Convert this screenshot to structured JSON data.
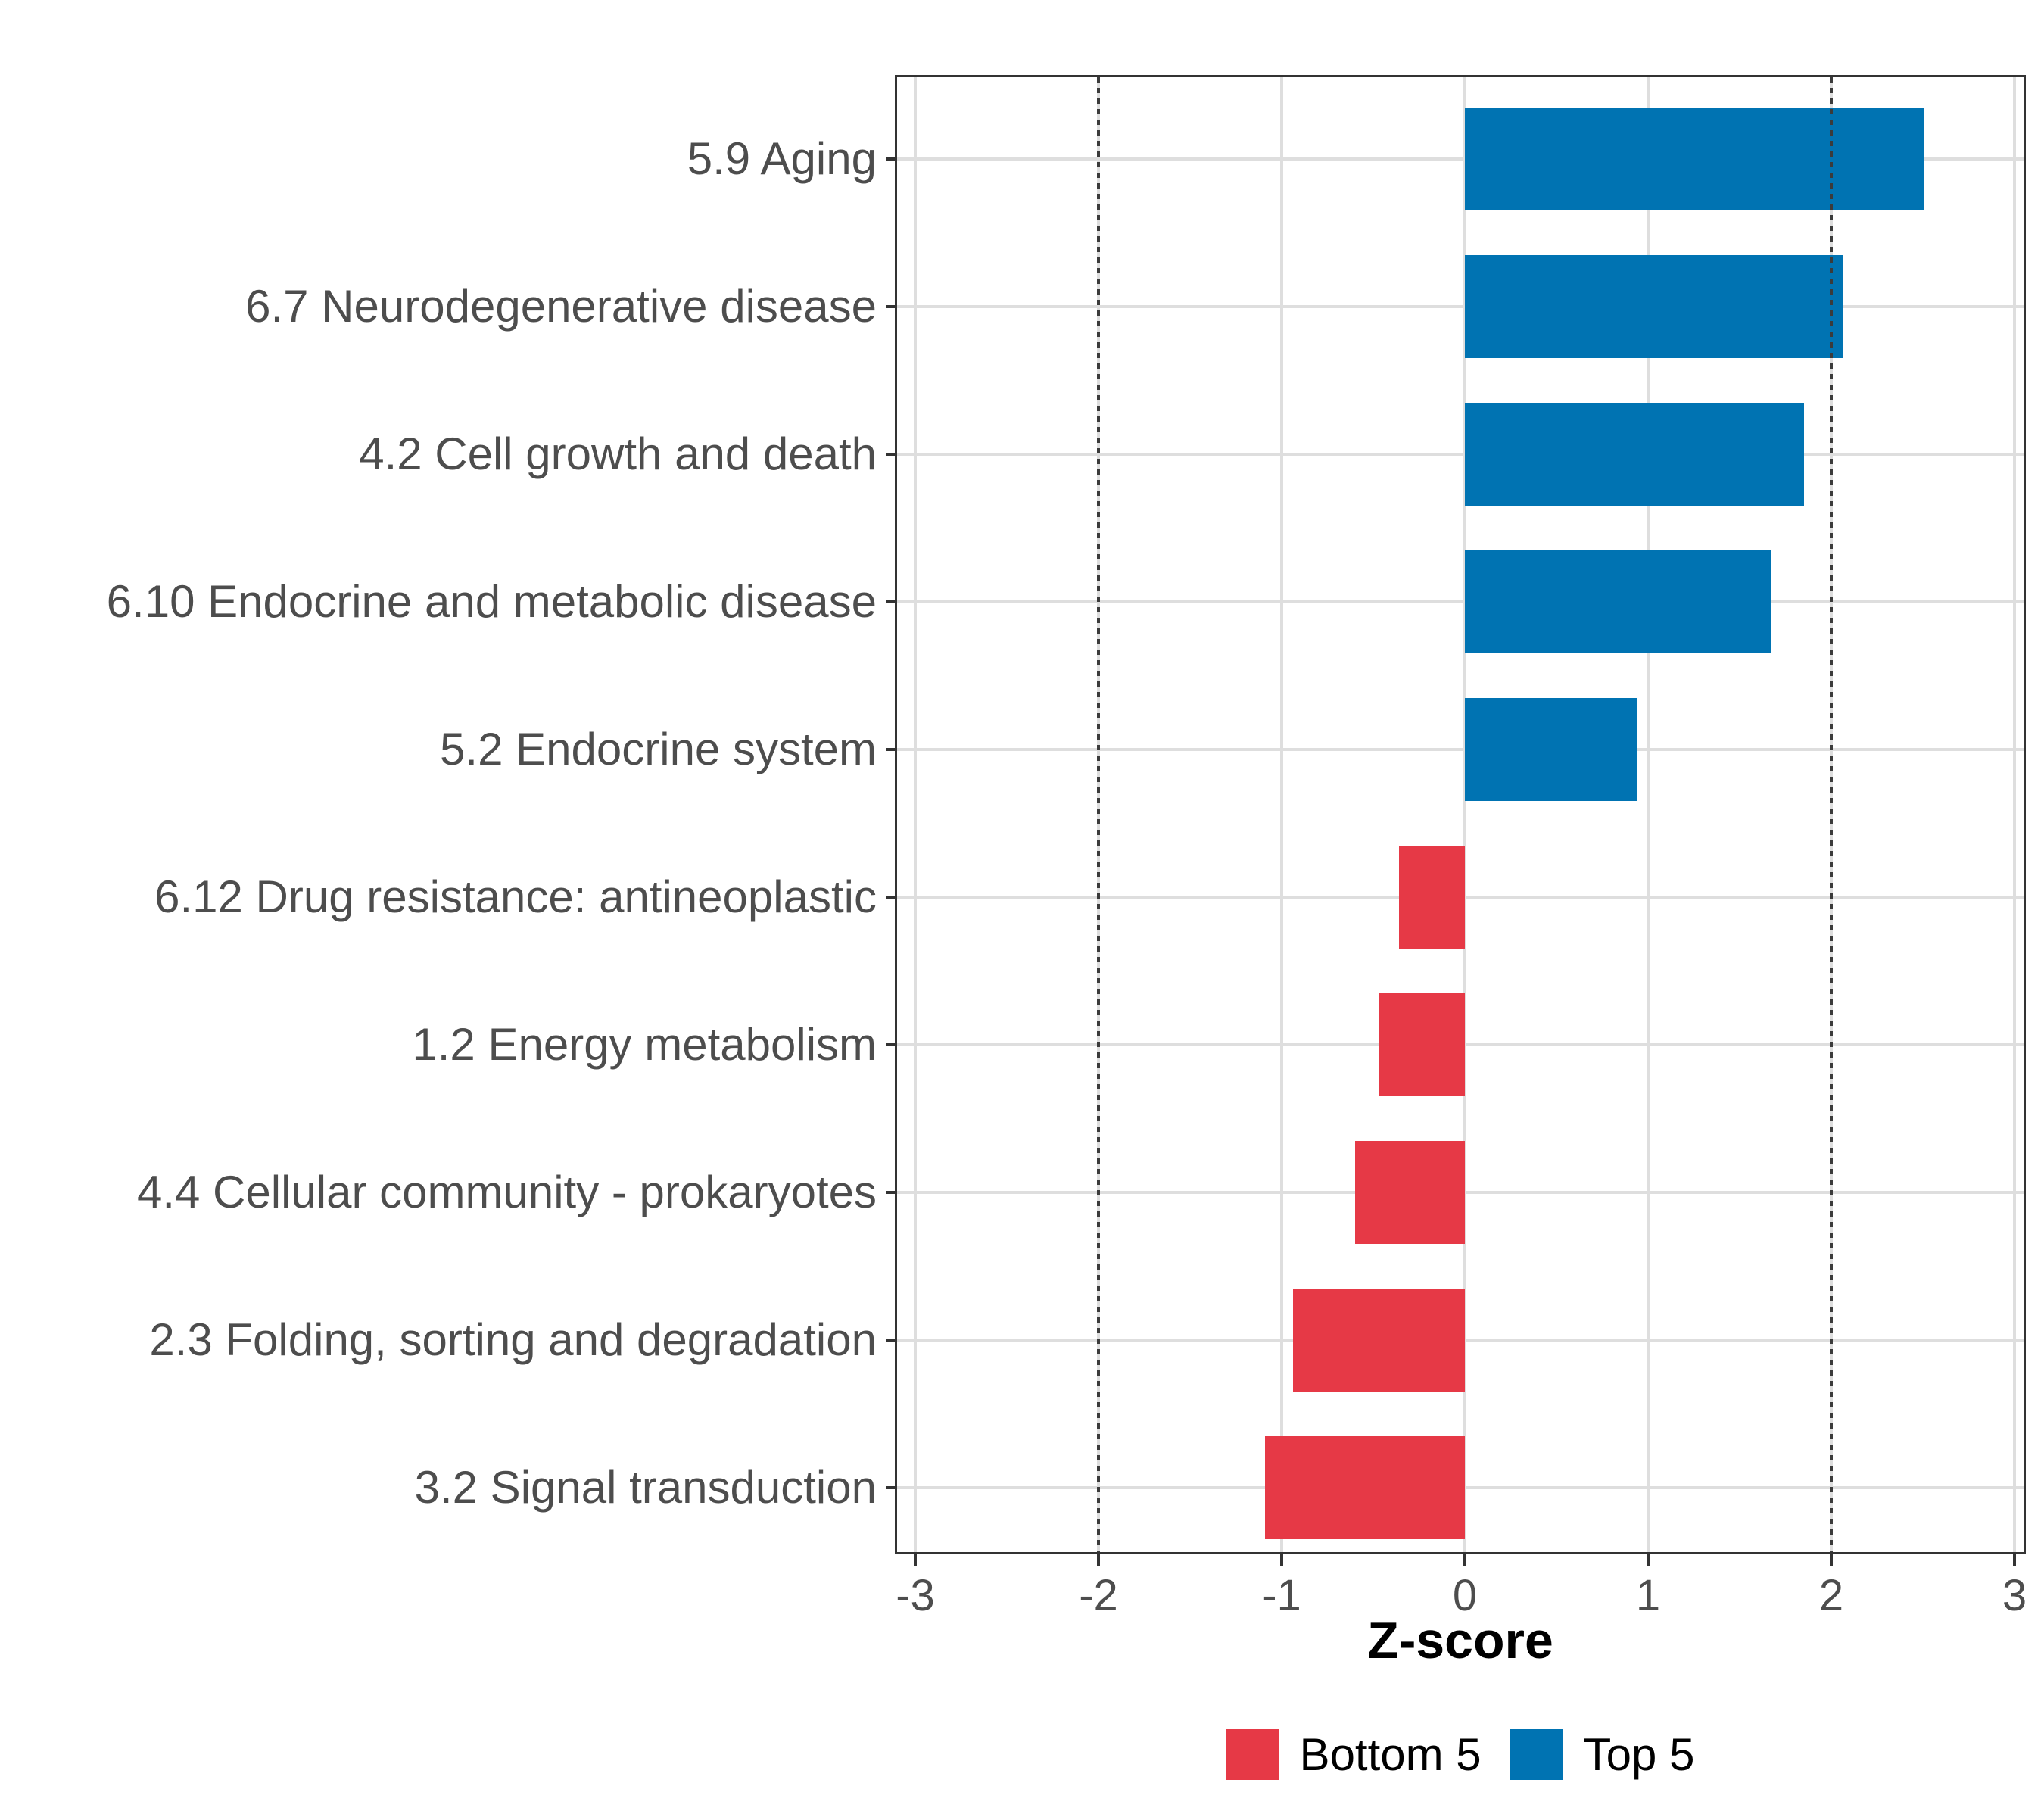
{
  "chart_data": {
    "type": "bar",
    "orientation": "horizontal",
    "title": "",
    "xlabel": "Z-score",
    "ylabel": "",
    "xlim": [
      -3.1,
      3.1
    ],
    "x_ticks": [
      -3,
      -2,
      -1,
      0,
      1,
      2,
      3
    ],
    "reference_lines": [
      -2,
      2
    ],
    "grid": true,
    "legend_position": "bottom",
    "bars": [
      {
        "category": "5.9 Aging",
        "value": 2.51,
        "group": "Top 5"
      },
      {
        "category": "6.7 Neurodegenerative disease",
        "value": 2.06,
        "group": "Top 5"
      },
      {
        "category": "4.2 Cell growth and death",
        "value": 1.85,
        "group": "Top 5"
      },
      {
        "category": "6.10 Endocrine and metabolic disease",
        "value": 1.67,
        "group": "Top 5"
      },
      {
        "category": "5.2 Endocrine system",
        "value": 0.94,
        "group": "Top 5"
      },
      {
        "category": "6.12 Drug resistance: antineoplastic",
        "value": -0.36,
        "group": "Bottom 5"
      },
      {
        "category": "1.2 Energy metabolism",
        "value": -0.47,
        "group": "Bottom 5"
      },
      {
        "category": "4.4 Cellular community - prokaryotes",
        "value": -0.6,
        "group": "Bottom 5"
      },
      {
        "category": "2.3 Folding, sorting and degradation",
        "value": -0.94,
        "group": "Bottom 5"
      },
      {
        "category": "3.2 Signal transduction",
        "value": -1.09,
        "group": "Bottom 5"
      }
    ],
    "series_colors": {
      "Bottom 5": "#E63946",
      "Top 5": "#0073B2"
    },
    "legend": {
      "items": [
        {
          "label": "Bottom 5",
          "color": "#E63946"
        },
        {
          "label": "Top 5",
          "color": "#0073B2"
        }
      ]
    }
  },
  "style": {
    "background": "#FFFFFF",
    "grid_color": "#DEDEDE",
    "panel_border_color": "#333333",
    "tick_color": "#333333",
    "axis_text_color": "#4D4D4D",
    "refline_color": "#3B3B3B"
  }
}
